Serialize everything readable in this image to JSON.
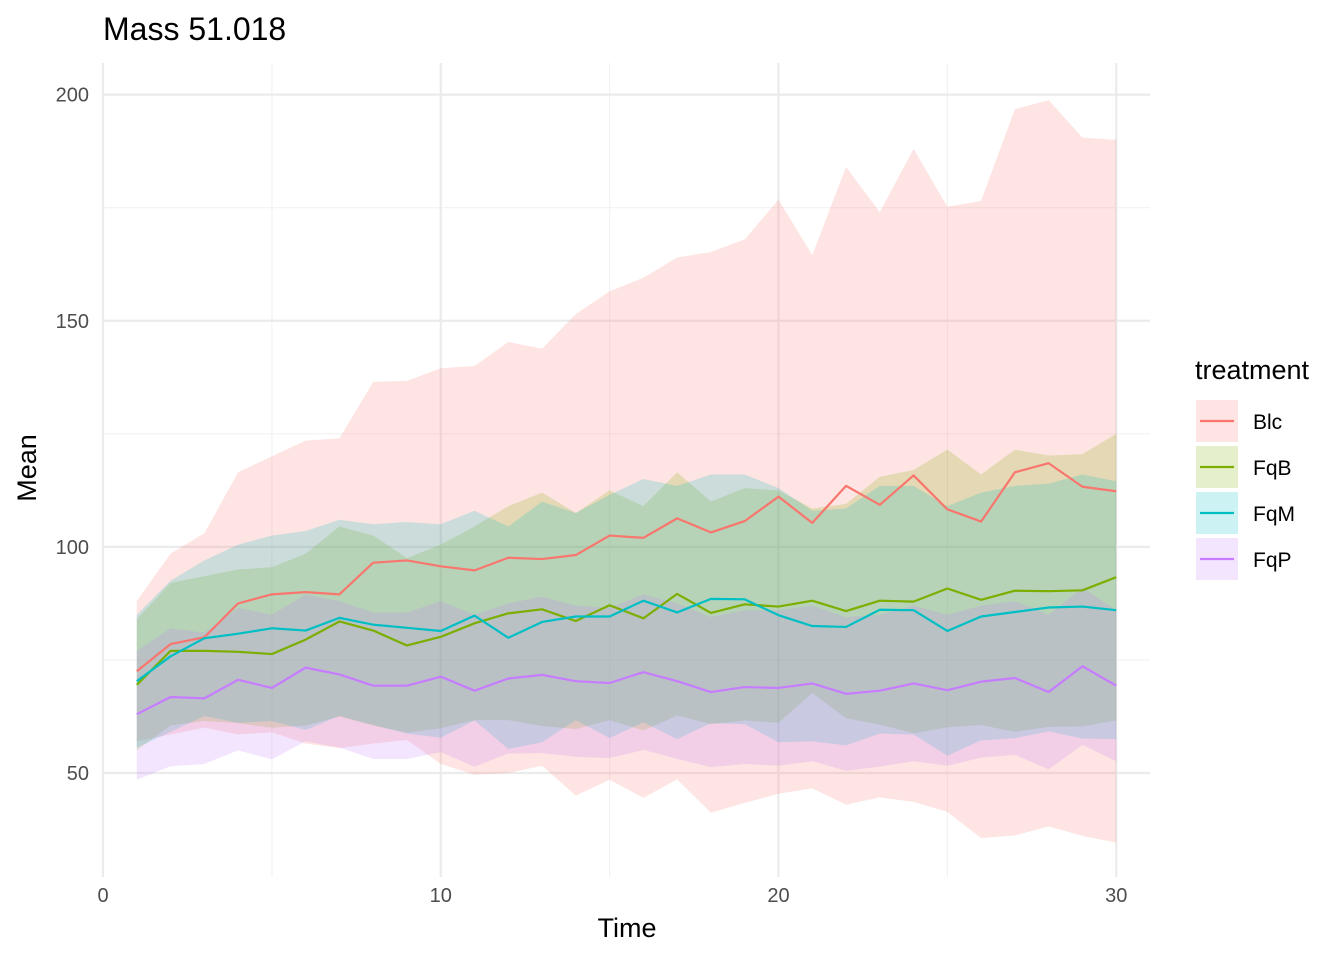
{
  "chart_data": {
    "type": "line",
    "title": "Mass 51.018",
    "xlabel": "Time",
    "ylabel": "Mean",
    "xlim": [
      0,
      31
    ],
    "ylim": [
      27,
      207
    ],
    "x_ticks": [
      0,
      10,
      20,
      30
    ],
    "y_ticks": [
      50,
      100,
      150,
      200
    ],
    "grid": true,
    "legend": {
      "title": "treatment",
      "position": "right"
    },
    "x": [
      1,
      2,
      3,
      4,
      5,
      6,
      7,
      8,
      9,
      10,
      11,
      12,
      13,
      14,
      15,
      16,
      17,
      18,
      19,
      20,
      21,
      22,
      23,
      24,
      25,
      26,
      27,
      28,
      29,
      30
    ],
    "series": [
      {
        "name": "Blc",
        "color": "#F8766D",
        "mean": [
          72.5,
          78.5,
          80,
          87.5,
          89.5,
          90,
          89.5,
          96.5,
          97,
          95.7,
          94.8,
          97.6,
          97.3,
          98.2,
          102.5,
          102,
          106.3,
          103.2,
          105.7,
          111.1,
          105.3,
          113.5,
          109.3,
          115.8,
          108.3,
          105.6,
          116.5,
          118.5,
          113.3,
          112.3
        ],
        "upper": [
          88,
          98.5,
          103,
          116.5,
          120,
          123.5,
          124,
          136.5,
          136.7,
          139.5,
          140,
          145.3,
          143.8,
          151.5,
          156.5,
          159.5,
          164,
          165.2,
          168,
          176.8,
          164.5,
          184,
          174,
          188,
          175.2,
          176.5,
          196.8,
          198.8,
          190.5,
          190
        ],
        "lower": [
          57,
          58.5,
          60,
          58.5,
          59,
          56.5,
          55.5,
          56.5,
          57.3,
          52,
          49.6,
          50,
          51.6,
          45,
          48.5,
          44.5,
          48.6,
          41.2,
          43.4,
          45.4,
          46.6,
          43,
          44.6,
          43.6,
          41.4,
          35.6,
          36.2,
          38.2,
          36.1,
          34.6
        ]
      },
      {
        "name": "FqB",
        "color": "#7CAE00",
        "mean": [
          69.5,
          77,
          77,
          76.8,
          76.3,
          79.5,
          83.5,
          81.5,
          78.2,
          80.1,
          83.1,
          85.3,
          86.2,
          83.6,
          87.1,
          84.2,
          89.6,
          85.4,
          87.3,
          86.8,
          88.1,
          85.8,
          88.1,
          87.9,
          90.8,
          88.3,
          90.3,
          90.2,
          90.4,
          93.3
        ],
        "upper": [
          84,
          92,
          93.5,
          95,
          95.5,
          98.5,
          104.5,
          102.5,
          97.5,
          100.5,
          104.5,
          109,
          112,
          107.5,
          112.5,
          109,
          116.5,
          110,
          113,
          112.5,
          108.5,
          109.5,
          115.5,
          117,
          121.5,
          116,
          121.5,
          120.2,
          120.5,
          125
        ],
        "lower": [
          55,
          60.5,
          61.5,
          61,
          60,
          60.5,
          62.5,
          60.5,
          58.9,
          59.9,
          61.7,
          61.7,
          60.4,
          59.7,
          61.7,
          59.4,
          62.7,
          60.8,
          61.6,
          61.1,
          67.7,
          62.1,
          60.7,
          58.8,
          60.1,
          60.6,
          59.1,
          60.2,
          60.3,
          61.6
        ]
      },
      {
        "name": "FqM",
        "color": "#00BFC4",
        "mean": [
          70.3,
          75.8,
          79.8,
          80.8,
          82,
          81.5,
          84.3,
          82.8,
          82.1,
          81.4,
          84.8,
          79.9,
          83.4,
          84.6,
          84.6,
          88.1,
          85.5,
          88.5,
          88.4,
          84.9,
          82.5,
          82.3,
          86.1,
          86,
          81.4,
          84.6,
          85.6,
          86.6,
          86.8,
          86
        ],
        "upper": [
          85,
          92.5,
          97,
          100.5,
          102.5,
          103.5,
          106,
          105,
          105.5,
          105,
          108,
          104.5,
          110,
          107.5,
          111.5,
          115,
          113.5,
          116,
          116,
          113,
          108,
          108.5,
          113.5,
          113.5,
          109,
          112,
          113.5,
          114,
          116,
          114.5
        ],
        "lower": [
          55.6,
          59.1,
          62.6,
          61.1,
          61.5,
          59.5,
          62.6,
          60.6,
          58.7,
          57.8,
          61.6,
          55.3,
          56.8,
          61.7,
          57.7,
          61.2,
          57.5,
          61,
          60.8,
          56.8,
          57,
          56.1,
          58.7,
          58.5,
          53.8,
          57.2,
          57.7,
          59.2,
          57.6,
          57.5
        ]
      },
      {
        "name": "FqP",
        "color": "#C77CFF",
        "mean": [
          63,
          66.8,
          66.5,
          70.6,
          68.8,
          73.3,
          71.8,
          69.3,
          69.3,
          71.3,
          68.2,
          70.9,
          71.7,
          70.3,
          69.9,
          72.3,
          70.3,
          67.9,
          69,
          68.8,
          69.8,
          67.5,
          68.2,
          69.8,
          68.3,
          70.2,
          71,
          67.9,
          73.6,
          69.3
        ],
        "upper": [
          77,
          82,
          81,
          86.5,
          85,
          89.5,
          88,
          85.5,
          85.5,
          88,
          85,
          87.5,
          89,
          87,
          86.5,
          89.5,
          87.5,
          84.5,
          86,
          86,
          87,
          84.5,
          85,
          87,
          85,
          87,
          88,
          85,
          91,
          86
        ],
        "lower": [
          48.5,
          51.5,
          52,
          55,
          53,
          57,
          55.6,
          53.1,
          53.1,
          54.6,
          51.4,
          54.3,
          54.4,
          53.6,
          53.3,
          55.1,
          53.1,
          51.3,
          52,
          51.6,
          52.6,
          50.5,
          51.4,
          52.6,
          51.6,
          53.4,
          54,
          50.8,
          56.2,
          52.6
        ]
      }
    ]
  }
}
